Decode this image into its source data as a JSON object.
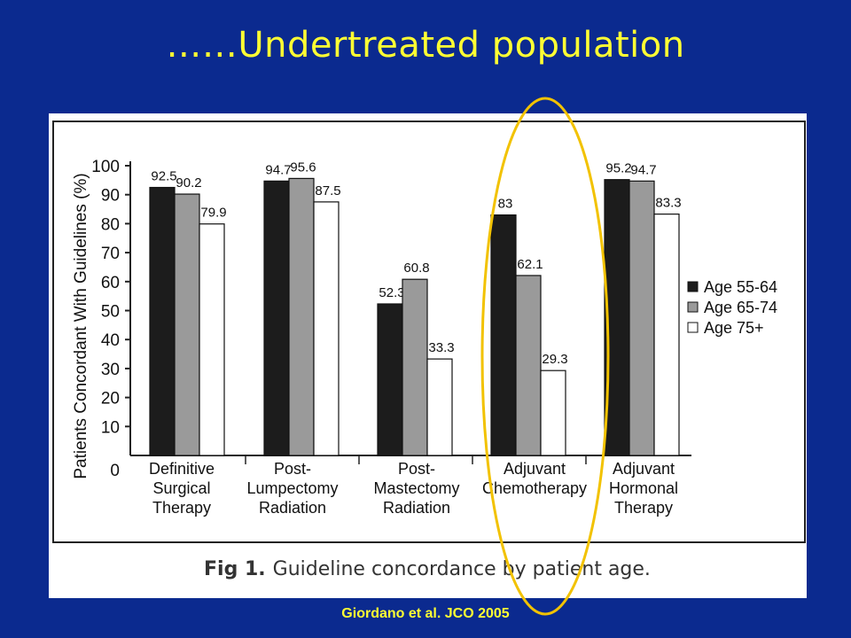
{
  "slide": {
    "title": "……Undertreated population",
    "citation": "Giordano et al. JCO 2005"
  },
  "caption": {
    "fig_label": "Fig 1.",
    "text": "Guideline concordance by patient age."
  },
  "colors": {
    "background": "#0b2a8f",
    "title": "#ffff33",
    "highlight_ellipse": "#f2c200",
    "series": [
      "#1c1c1c",
      "#9a9a9a",
      "#ffffff"
    ]
  },
  "chart_data": {
    "type": "bar",
    "ylabel": "Patients Concordant With Guidelines (%)",
    "ylim": [
      0,
      100
    ],
    "yticks": [
      0,
      10,
      20,
      30,
      40,
      50,
      60,
      70,
      80,
      90,
      100
    ],
    "categories": [
      [
        "Definitive",
        "Surgical",
        "Therapy"
      ],
      [
        "Post-",
        "Lumpectomy",
        "Radiation"
      ],
      [
        "Post-",
        "Mastectomy",
        "Radiation"
      ],
      [
        "Adjuvant",
        "Chemotherapy"
      ],
      [
        "Adjuvant",
        "Hormonal",
        "Therapy"
      ]
    ],
    "series": [
      {
        "name": "Age 55-64",
        "values": [
          92.5,
          94.7,
          52.3,
          83,
          95.2
        ],
        "labels": [
          "92.5",
          "94.7",
          "52.3",
          "83",
          "95.2"
        ]
      },
      {
        "name": "Age 65-74",
        "values": [
          90.2,
          95.6,
          60.8,
          62.1,
          94.7
        ],
        "labels": [
          "90.2",
          "95.6",
          "60.8",
          "62.1",
          "94.7"
        ]
      },
      {
        "name": "Age 75+",
        "values": [
          79.9,
          87.5,
          33.3,
          29.3,
          83.3
        ],
        "labels": [
          "79.9",
          "87.5",
          "33.3",
          "29.3",
          "83.3"
        ]
      }
    ],
    "legend_position": "right",
    "highlighted_category": "Adjuvant Chemotherapy"
  }
}
